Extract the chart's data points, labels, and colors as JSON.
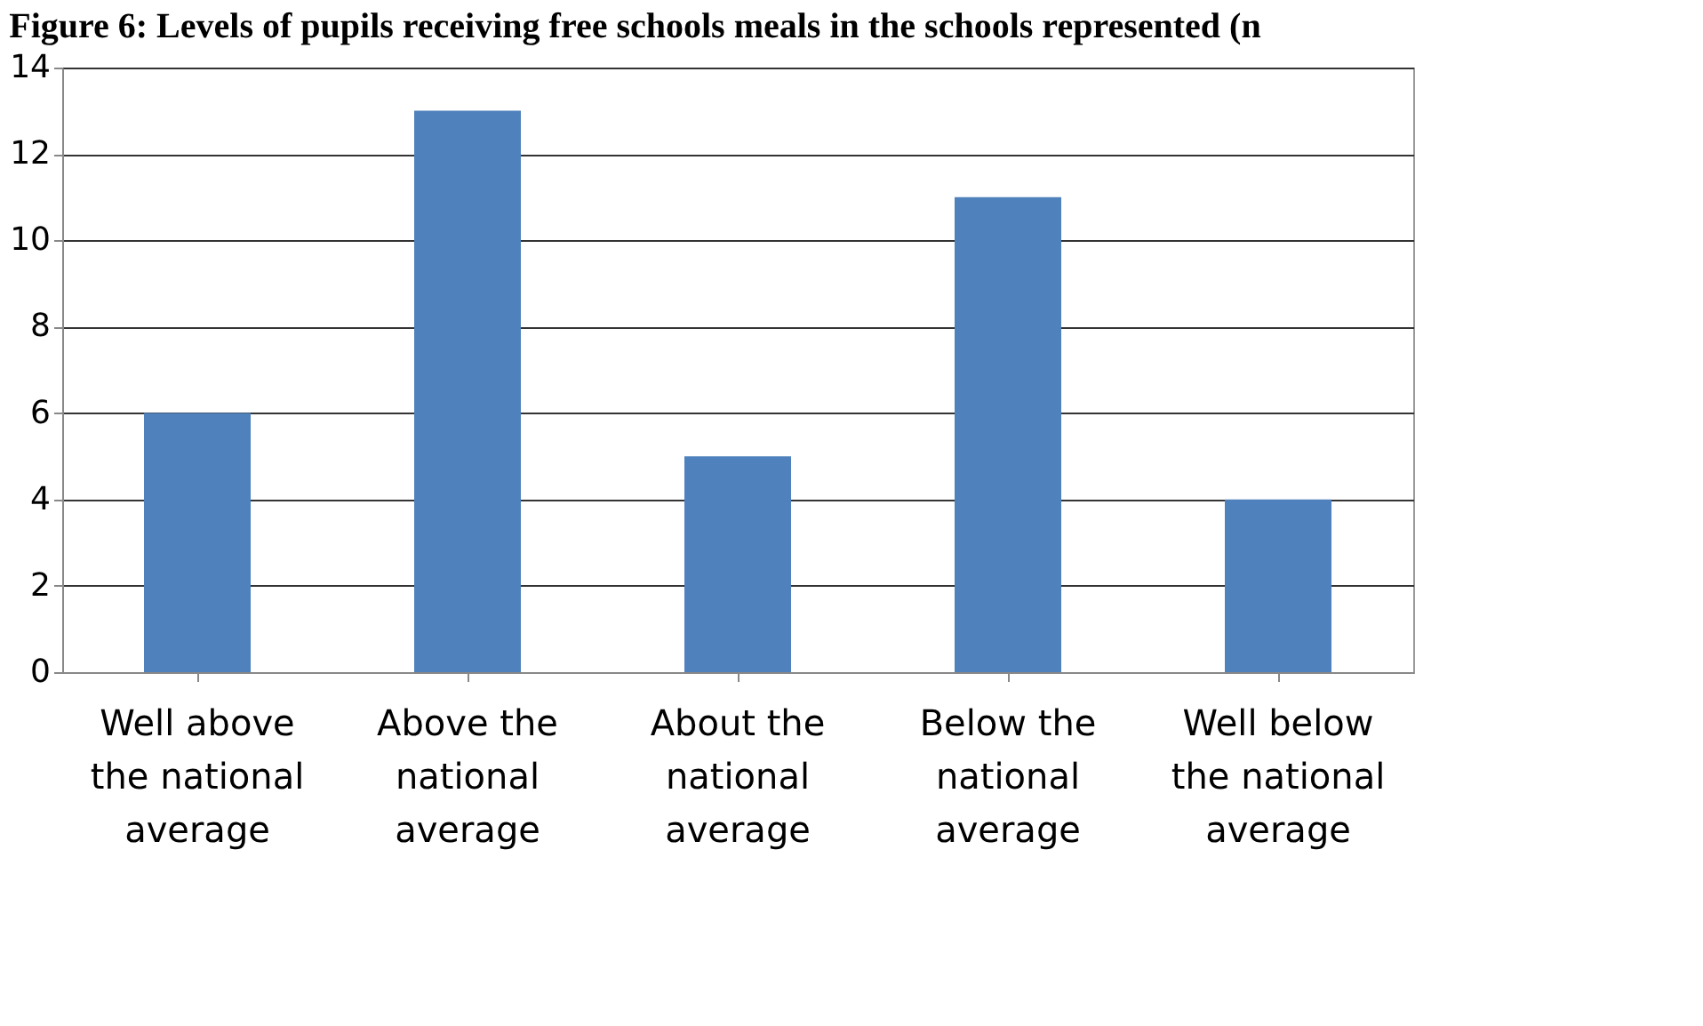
{
  "chart_data": {
    "type": "bar",
    "title": "Figure 6: Levels of pupils receiving free schools meals in the schools represented (n",
    "categories": [
      "Well above the national average",
      "Above the national average",
      "About the national average",
      "Below the national average",
      "Well below the national average"
    ],
    "values": [
      6,
      13,
      5,
      11,
      4
    ],
    "color": "#4f81bd",
    "ylim": [
      0,
      14
    ],
    "yticks": [
      0,
      2,
      4,
      6,
      8,
      10,
      12,
      14
    ],
    "grid": "y"
  }
}
